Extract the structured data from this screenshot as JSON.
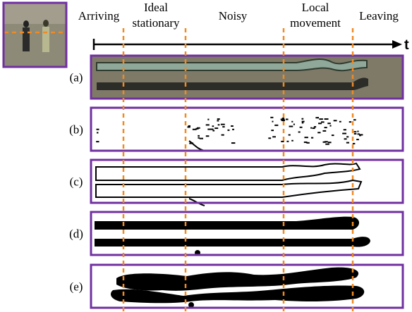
{
  "phases": [
    [
      "Arriving"
    ],
    [
      "Ideal",
      "stationary"
    ],
    [
      "Noisy"
    ],
    [
      "Local",
      "movement"
    ],
    [
      "Leaving"
    ]
  ],
  "axis_label": "t",
  "panels": [
    "(a)",
    "(b)",
    "(c)",
    "(d)",
    "(e)"
  ]
}
